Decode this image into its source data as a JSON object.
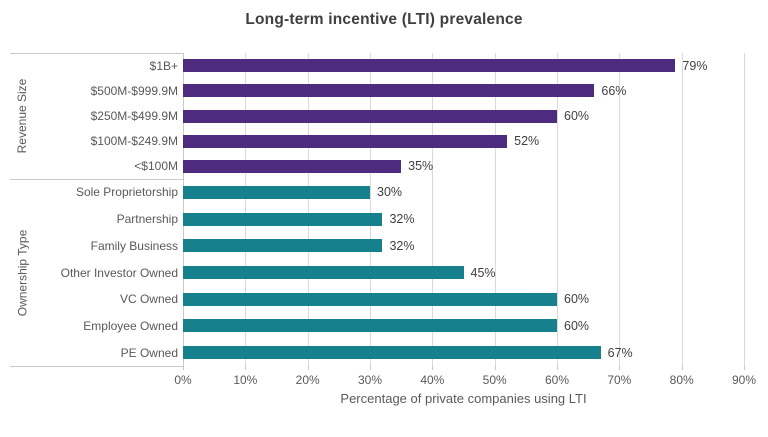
{
  "chart_data": {
    "type": "bar",
    "orientation": "horizontal",
    "title": "Long-term incentive (LTI) prevalence",
    "xlabel": "Percentage of private companies using LTI",
    "ylabel": "",
    "xlim": [
      0,
      90
    ],
    "x_ticks": [
      "0%",
      "10%",
      "20%",
      "30%",
      "40%",
      "50%",
      "60%",
      "70%",
      "80%",
      "90%"
    ],
    "grid": true,
    "value_suffix": "%",
    "groups": [
      {
        "label": "Revenue Size",
        "color": "#4d2c7f",
        "items": [
          {
            "label": "$1B+",
            "value": 79,
            "value_label": "79%"
          },
          {
            "label": "$500M-$999.9M",
            "value": 66,
            "value_label": "66%"
          },
          {
            "label": "$250M-$499.9M",
            "value": 60,
            "value_label": "60%"
          },
          {
            "label": "$100M-$249.9M",
            "value": 52,
            "value_label": "52%"
          },
          {
            "label": "<$100M",
            "value": 35,
            "value_label": "35%"
          }
        ]
      },
      {
        "label": "Ownership Type",
        "color": "#16808c",
        "items": [
          {
            "label": "Sole Proprietorship",
            "value": 30,
            "value_label": "30%"
          },
          {
            "label": "Partnership",
            "value": 32,
            "value_label": "32%"
          },
          {
            "label": "Family Business",
            "value": 32,
            "value_label": "32%"
          },
          {
            "label": "Other Investor Owned",
            "value": 45,
            "value_label": "45%"
          },
          {
            "label": "VC Owned",
            "value": 60,
            "value_label": "60%"
          },
          {
            "label": "Employee Owned",
            "value": 60,
            "value_label": "60%"
          },
          {
            "label": "PE Owned",
            "value": 67,
            "value_label": "67%"
          }
        ]
      }
    ]
  }
}
